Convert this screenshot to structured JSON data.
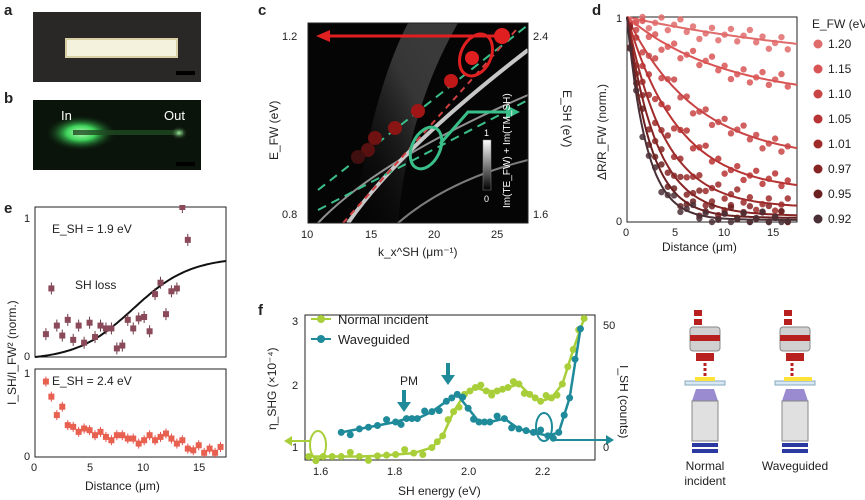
{
  "panels": {
    "a": {
      "letter": "a"
    },
    "b": {
      "letter": "b",
      "in_label": "In",
      "out_label": "Out"
    },
    "c": {
      "letter": "c",
      "ylabel_left": "E_FW (eV)",
      "ylabel_right": "E_SH (eV)",
      "xlabel": "k_x^SH (μm⁻¹)",
      "colorbar_label": "Im(TE_FW) + Im(TM_SH)",
      "colorbar_top": "1",
      "colorbar_bottom": "0",
      "y_left_ticks": [
        "1.2",
        "0.8"
      ],
      "y_right_ticks": [
        "2.4",
        "1.6"
      ],
      "x_ticks": [
        "10",
        "15",
        "20",
        "25"
      ]
    },
    "d": {
      "letter": "d",
      "ylabel": "ΔR/R_FW (norm.)",
      "xlabel": "Distance (μm)",
      "legend_title": "E_FW (eV)",
      "y_ticks": [
        "1",
        "0"
      ],
      "x_ticks": [
        "0",
        "5",
        "10",
        "15"
      ],
      "legend": [
        "1.20",
        "1.15",
        "1.10",
        "1.05",
        "1.01",
        "0.97",
        "0.95",
        "0.92"
      ],
      "legend_colors": [
        "#e06b6b",
        "#d95555",
        "#c94444",
        "#b83333",
        "#9e2a2a",
        "#862424",
        "#6a2020",
        "#4a3036"
      ]
    },
    "e": {
      "letter": "e",
      "annot_top": "E_SH = 1.9 eV",
      "annot_bottom": "E_SH = 2.4 eV",
      "loss_label": "SH loss",
      "ylabel": "I_SH/I_FW² (norm.)",
      "xlabel": "Distance (μm)",
      "y_ticks_top": [
        "1",
        "0"
      ],
      "y_ticks_bottom": [
        "1",
        "0"
      ],
      "x_ticks": [
        "0",
        "5",
        "10",
        "15"
      ]
    },
    "f": {
      "letter": "f",
      "legend": [
        "Normal incident",
        "Waveguided"
      ],
      "pm_label": "PM",
      "ylabel_left": "η_SHG (×10⁻⁴)",
      "ylabel_right": "I_SH (counts)",
      "xlabel": "SH energy (eV)",
      "y_left_ticks": [
        "3",
        "2",
        "1"
      ],
      "y_right_ticks": [
        "50",
        "0"
      ],
      "x_ticks": [
        "1.6",
        "1.8",
        "2.0",
        "2.2"
      ],
      "series_colors": {
        "normal": "#a8cf3a",
        "waveguided": "#1f8a99"
      }
    },
    "schematic": {
      "labels": [
        "Normal\nincident",
        "Waveguided"
      ],
      "label1_l1": "Normal",
      "label1_l2": "incident",
      "label2": "Waveguided"
    }
  },
  "chart_data": [
    {
      "type": "scatter",
      "panel": "d",
      "xlabel": "Distance (μm)",
      "ylabel": "ΔR/R_FW (norm.)",
      "xlim": [
        0,
        17.5
      ],
      "ylim": [
        0,
        1
      ],
      "series": [
        {
          "name": "1.20",
          "decay": 0.04,
          "floor": 0.74
        },
        {
          "name": "1.15",
          "decay": 0.1,
          "floor": 0.6
        },
        {
          "name": "1.10",
          "decay": 0.14,
          "floor": 0.3
        },
        {
          "name": "1.05",
          "decay": 0.19,
          "floor": 0.15
        },
        {
          "name": "1.01",
          "decay": 0.26,
          "floor": 0.07
        },
        {
          "name": "0.97",
          "decay": 0.33,
          "floor": 0.03
        },
        {
          "name": "0.95",
          "decay": 0.42,
          "floor": 0.02
        },
        {
          "name": "0.92",
          "decay": 0.5,
          "floor": 0.01
        }
      ]
    },
    {
      "type": "scatter",
      "panel": "e-top",
      "xlim": [
        0,
        17.5
      ],
      "ylim": [
        0,
        1.05
      ],
      "x": [
        1.0,
        1.5,
        2.0,
        2.5,
        3.0,
        3.5,
        4.0,
        4.5,
        5.0,
        5.5,
        6.0,
        6.5,
        7.0,
        7.5,
        8.0,
        8.5,
        9.0,
        9.5,
        10.0,
        10.5,
        11.0,
        11.5,
        12.0,
        12.5,
        13.0,
        13.5,
        14.0
      ],
      "y": [
        0.16,
        0.48,
        0.22,
        0.15,
        0.26,
        0.12,
        0.22,
        0.1,
        0.24,
        0.14,
        0.22,
        0.2,
        0.2,
        0.06,
        0.08,
        0.26,
        0.2,
        0.27,
        0.28,
        0.18,
        0.44,
        0.52,
        0.3,
        0.46,
        0.48,
        1.05,
        0.82
      ],
      "fit": "sigmoid"
    },
    {
      "type": "scatter",
      "panel": "e-bottom",
      "xlim": [
        0,
        17.5
      ],
      "ylim": [
        0,
        1.05
      ],
      "x": [
        1.0,
        1.5,
        2.0,
        2.5,
        3.0,
        3.5,
        4.0,
        4.5,
        5.0,
        5.5,
        6.0,
        6.5,
        7.0,
        7.5,
        8.0,
        8.5,
        9.0,
        9.5,
        10.0,
        10.5,
        11.0,
        11.5,
        12.0,
        12.5,
        13.0,
        13.5,
        14.0,
        14.5,
        15.0,
        15.5,
        16.0,
        16.5,
        17.0
      ],
      "y": [
        0.9,
        0.72,
        0.5,
        0.6,
        0.38,
        0.36,
        0.3,
        0.34,
        0.32,
        0.26,
        0.3,
        0.24,
        0.2,
        0.26,
        0.26,
        0.22,
        0.22,
        0.16,
        0.2,
        0.26,
        0.2,
        0.24,
        0.28,
        0.22,
        0.16,
        0.2,
        0.1,
        0.08,
        0.14,
        0.05,
        0.1,
        0.05,
        0.12
      ]
    },
    {
      "type": "line",
      "panel": "f",
      "xlabel": "SH energy (eV)",
      "xlim": [
        1.55,
        2.35
      ],
      "ylim": [
        1,
        3.1
      ],
      "series": [
        {
          "name": "Normal incident",
          "x": [
            1.56,
            1.6,
            1.65,
            1.7,
            1.75,
            1.8,
            1.85,
            1.9,
            1.93,
            1.96,
            1.99,
            2.02,
            2.05,
            2.08,
            2.11,
            2.14,
            2.17,
            2.2,
            2.23,
            2.26,
            2.29,
            2.32
          ],
          "y": [
            1.05,
            1.05,
            1.05,
            1.05,
            1.06,
            1.08,
            1.1,
            1.18,
            1.35,
            1.7,
            1.95,
            2.05,
            2.0,
            2.0,
            2.05,
            2.1,
            1.95,
            1.85,
            1.9,
            2.1,
            2.6,
            3.05
          ]
        },
        {
          "name": "Waveguided",
          "x": [
            1.65,
            1.7,
            1.75,
            1.8,
            1.83,
            1.86,
            1.9,
            1.94,
            1.97,
            2.0,
            2.03,
            2.06,
            2.1,
            2.14,
            2.18,
            2.22,
            2.25,
            2.28,
            2.31
          ],
          "y": [
            1.4,
            1.45,
            1.5,
            1.55,
            1.6,
            1.6,
            1.7,
            1.85,
            1.95,
            1.75,
            1.55,
            1.55,
            1.6,
            1.45,
            1.4,
            1.35,
            1.4,
            1.9,
            2.9
          ]
        }
      ]
    }
  ]
}
